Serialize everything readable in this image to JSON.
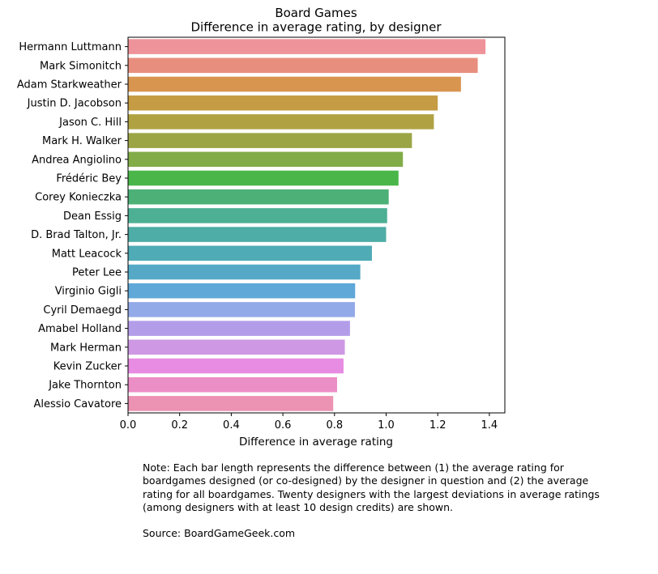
{
  "chart_data": {
    "type": "bar",
    "orientation": "horizontal",
    "title": "Board Games",
    "subtitle": "Difference in average rating, by designer",
    "xlabel": "Difference in average rating",
    "ylabel": "",
    "xlim": [
      0,
      1.46
    ],
    "xticks": [
      0.0,
      0.2,
      0.4,
      0.6,
      0.8,
      1.0,
      1.2,
      1.4
    ],
    "xtick_labels": [
      "0.0",
      "0.2",
      "0.4",
      "0.6",
      "0.8",
      "1.0",
      "1.2",
      "1.4"
    ],
    "grid": false,
    "categories": [
      "Hermann Luttmann",
      "Mark Simonitch",
      "Adam Starkweather",
      "Justin D. Jacobson",
      "Jason C. Hill",
      "Mark H. Walker",
      "Andrea Angiolino",
      "Frédéric Bey",
      "Corey Konieczka",
      "Dean Essig",
      "D. Brad Talton, Jr.",
      "Matt Leacock",
      "Peter Lee",
      "Virginio Gigli",
      "Cyril Demaegd",
      "Amabel Holland",
      "Mark Herman",
      "Kevin Zucker",
      "Jake Thornton",
      "Alessio Cavatore"
    ],
    "values": [
      1.385,
      1.355,
      1.29,
      1.2,
      1.185,
      1.1,
      1.065,
      1.048,
      1.01,
      1.004,
      1.0,
      0.945,
      0.9,
      0.88,
      0.879,
      0.86,
      0.84,
      0.835,
      0.81,
      0.795
    ],
    "colors": [
      "#ef939a",
      "#e88e7e",
      "#d89550",
      "#c59b44",
      "#b0a243",
      "#9ba545",
      "#81ac48",
      "#4ab64a",
      "#4cb077",
      "#4db095",
      "#4eada6",
      "#4fabb5",
      "#55a9c7",
      "#5fa8d8",
      "#93aae8",
      "#b39de9",
      "#ce98e4",
      "#e88be2",
      "#ec8ec6",
      "#ec92b2"
    ]
  },
  "note": {
    "text": "Note: Each bar length represents the difference between (1) the average rating for\nboardgames designed (or co-designed) by the designer in question and (2) the average\nrating for all boardgames. Twenty designers with the largest deviations in average ratings\n(among designers with at least 10 design credits) are shown.",
    "source": "Source: BoardGameGeek.com"
  }
}
